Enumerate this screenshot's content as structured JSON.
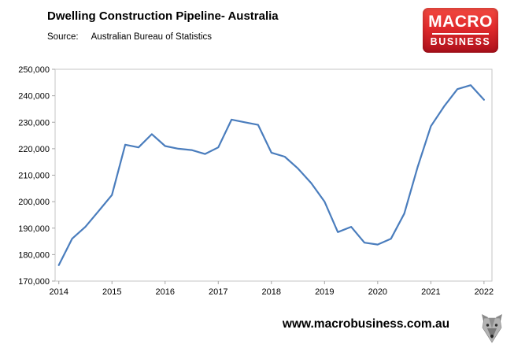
{
  "header": {
    "title": "Dwelling Construction Pipeline- Australia",
    "source_label": "Source:",
    "source_value": "Australian Bureau of Statistics"
  },
  "logo": {
    "line1": "MACRO",
    "line2": "BUSINESS",
    "color_top": "#f24a41",
    "color_bottom": "#ad101b"
  },
  "footer": {
    "url": "www.macrobusiness.com.au"
  },
  "chart_data": {
    "type": "line",
    "title": "Dwelling Construction Pipeline- Australia",
    "xlabel": "",
    "ylabel": "",
    "grid": false,
    "legend": "none",
    "line_color": "#4a7dbd",
    "xlim": [
      2013.93,
      2022.15
    ],
    "ylim": [
      170000,
      250000
    ],
    "x_ticks": [
      2014,
      2015,
      2016,
      2017,
      2018,
      2019,
      2020,
      2021,
      2022
    ],
    "y_ticks": [
      "170,000",
      "180,000",
      "190,000",
      "200,000",
      "210,000",
      "220,000",
      "230,000",
      "240,000",
      "250,000"
    ],
    "y_tick_step": 10000,
    "series": [
      {
        "name": "Dwelling construction pipeline",
        "x": [
          2014.0,
          2014.25,
          2014.5,
          2014.75,
          2015.0,
          2015.25,
          2015.5,
          2015.75,
          2016.0,
          2016.25,
          2016.5,
          2016.75,
          2017.0,
          2017.25,
          2017.5,
          2017.75,
          2018.0,
          2018.25,
          2018.5,
          2018.75,
          2019.0,
          2019.25,
          2019.5,
          2019.75,
          2020.0,
          2020.25,
          2020.5,
          2020.75,
          2021.0,
          2021.25,
          2021.5,
          2021.75,
          2022.0
        ],
        "values": [
          176000,
          186000,
          190500,
          196500,
          202500,
          221500,
          220500,
          225500,
          221000,
          220000,
          219500,
          218000,
          220500,
          231000,
          230000,
          229000,
          218500,
          217000,
          212500,
          207000,
          200000,
          188500,
          190500,
          184500,
          183800,
          186000,
          195500,
          213000,
          228500,
          236000,
          242500,
          244000,
          238500
        ]
      }
    ]
  }
}
